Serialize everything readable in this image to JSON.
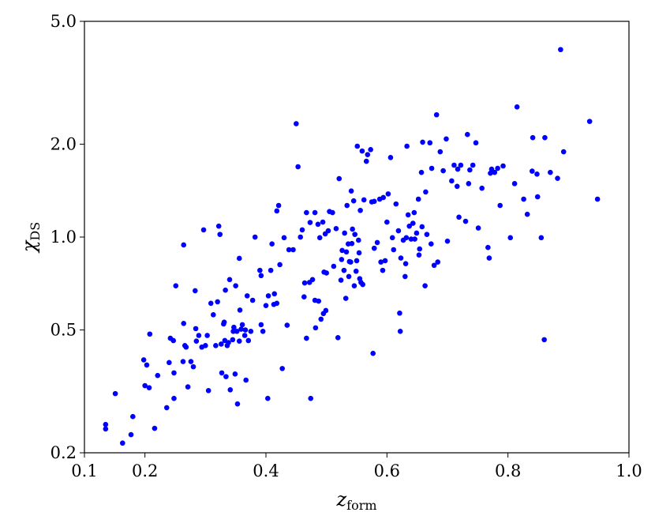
{
  "chart_data": {
    "type": "scatter",
    "xlabel": [
      "z",
      "form"
    ],
    "ylabel": [
      "χ",
      "DS"
    ],
    "color": "#0000ff",
    "log_y": true,
    "xlim": [
      0.1,
      1.0
    ],
    "xticks": [
      0.1,
      0.2,
      0.4,
      0.6,
      0.8,
      {
        "value": 1.0,
        "label": "1.0"
      }
    ],
    "ylim": [
      0.2,
      5.0
    ],
    "yticks": [
      0.2,
      0.5,
      {
        "value": 1.0,
        "label": "1.0"
      },
      {
        "value": 2.0,
        "label": "2.0"
      },
      {
        "value": 5.0,
        "label": "5.0"
      }
    ],
    "x": [
      0.135,
      0.135,
      0.151,
      0.163,
      0.177,
      0.18,
      0.198,
      0.2,
      0.203,
      0.208,
      0.207,
      0.216,
      0.221,
      0.236,
      0.24,
      0.242,
      0.247,
      0.248,
      0.248,
      0.251,
      0.263,
      0.264,
      0.266,
      0.268,
      0.264,
      0.271,
      0.276,
      0.28,
      0.283,
      0.284,
      0.285,
      0.289,
      0.294,
      0.297,
      0.3,
      0.303,
      0.305,
      0.309,
      0.313,
      0.317,
      0.32,
      0.322,
      0.324,
      0.326,
      0.327,
      0.33,
      0.331,
      0.332,
      0.333,
      0.334,
      0.336,
      0.338,
      0.34,
      0.341,
      0.345,
      0.346,
      0.347,
      0.349,
      0.35,
      0.352,
      0.353,
      0.356,
      0.356,
      0.357,
      0.359,
      0.361,
      0.365,
      0.366,
      0.367,
      0.369,
      0.371,
      0.375,
      0.378,
      0.382,
      0.39,
      0.392,
      0.392,
      0.395,
      0.4,
      0.403,
      0.404,
      0.408,
      0.41,
      0.413,
      0.414,
      0.418,
      0.418,
      0.421,
      0.423,
      0.427,
      0.43,
      0.435,
      0.438,
      0.445,
      0.45,
      0.453,
      0.457,
      0.46,
      0.463,
      0.464,
      0.467,
      0.467,
      0.472,
      0.473,
      0.474,
      0.477,
      0.481,
      0.481,
      0.482,
      0.486,
      0.487,
      0.489,
      0.491,
      0.494,
      0.495,
      0.496,
      0.498,
      0.499,
      0.5,
      0.503,
      0.505,
      0.51,
      0.512,
      0.516,
      0.519,
      0.521,
      0.524,
      0.525,
      0.526,
      0.529,
      0.53,
      0.532,
      0.533,
      0.534,
      0.536,
      0.537,
      0.538,
      0.54,
      0.541,
      0.542,
      0.543,
      0.545,
      0.546,
      0.547,
      0.549,
      0.55,
      0.551,
      0.553,
      0.554,
      0.555,
      0.556,
      0.557,
      0.559,
      0.56,
      0.562,
      0.566,
      0.568,
      0.573,
      0.575,
      0.577,
      0.579,
      0.579,
      0.584,
      0.588,
      0.59,
      0.593,
      0.594,
      0.597,
      0.6,
      0.602,
      0.606,
      0.609,
      0.611,
      0.615,
      0.619,
      0.621,
      0.622,
      0.623,
      0.627,
      0.63,
      0.631,
      0.632,
      0.633,
      0.635,
      0.637,
      0.64,
      0.643,
      0.645,
      0.646,
      0.649,
      0.652,
      0.653,
      0.654,
      0.657,
      0.658,
      0.659,
      0.663,
      0.664,
      0.666,
      0.671,
      0.673,
      0.674,
      0.678,
      0.682,
      0.684,
      0.688,
      0.693,
      0.698,
      0.7,
      0.707,
      0.711,
      0.716,
      0.717,
      0.719,
      0.722,
      0.73,
      0.733,
      0.735,
      0.737,
      0.742,
      0.747,
      0.751,
      0.757,
      0.767,
      0.769,
      0.771,
      0.773,
      0.778,
      0.783,
      0.787,
      0.792,
      0.804,
      0.811,
      0.815,
      0.826,
      0.832,
      0.84,
      0.841,
      0.848,
      0.849,
      0.855,
      0.86,
      0.861,
      0.87,
      0.882,
      0.887,
      0.892,
      0.935,
      0.948
    ],
    "y": [
      0.247,
      0.239,
      0.311,
      0.215,
      0.229,
      0.262,
      0.4,
      0.33,
      0.385,
      0.485,
      0.325,
      0.24,
      0.356,
      0.28,
      0.392,
      0.47,
      0.462,
      0.363,
      0.3,
      0.695,
      0.395,
      0.525,
      0.445,
      0.44,
      0.943,
      0.327,
      0.395,
      0.38,
      0.67,
      0.505,
      0.46,
      0.48,
      0.44,
      1.055,
      0.445,
      0.48,
      0.318,
      0.61,
      0.56,
      0.445,
      0.617,
      1.085,
      1.02,
      0.45,
      0.363,
      0.523,
      0.53,
      0.462,
      0.673,
      0.353,
      0.445,
      0.455,
      0.728,
      0.32,
      0.465,
      0.495,
      0.51,
      0.36,
      0.695,
      0.495,
      0.288,
      0.46,
      0.853,
      0.58,
      0.503,
      0.52,
      0.48,
      0.5,
      0.344,
      0.645,
      0.462,
      0.495,
      0.624,
      1.0,
      0.78,
      0.75,
      0.52,
      0.495,
      0.6,
      0.3,
      0.645,
      0.78,
      0.95,
      0.605,
      0.655,
      0.61,
      1.215,
      1.266,
      0.814,
      0.375,
      0.995,
      0.518,
      0.91,
      0.91,
      2.33,
      1.69,
      1.0,
      1.055,
      0.64,
      0.71,
      1.2,
      0.47,
      0.713,
      1.115,
      0.3,
      0.728,
      1.2,
      0.624,
      0.508,
      1.1,
      0.62,
      0.995,
      0.542,
      1.118,
      0.565,
      0.77,
      1.024,
      0.578,
      0.765,
      1.048,
      1.21,
      1.2,
      0.804,
      1.065,
      0.472,
      1.546,
      0.725,
      0.846,
      0.905,
      0.78,
      1.03,
      0.633,
      0.895,
      1.266,
      0.95,
      0.745,
      0.833,
      0.83,
      1.41,
      0.953,
      1.061,
      1.31,
      0.695,
      1.02,
      0.775,
      0.838,
      1.97,
      0.977,
      0.889,
      0.733,
      1.22,
      0.713,
      1.9,
      0.702,
      1.32,
      1.76,
      1.85,
      1.92,
      1.3,
      0.42,
      0.92,
      1.305,
      0.96,
      1.327,
      0.83,
      0.78,
      1.343,
      0.838,
      1.118,
      1.38,
      1.81,
      0.995,
      0.91,
      1.28,
      1.048,
      0.567,
      0.495,
      0.855,
      0.977,
      0.745,
      0.82,
      0.995,
      1.97,
      1.18,
      1.085,
      0.985,
      1.108,
      1.2,
      0.985,
      1.03,
      1.327,
      0.875,
      0.915,
      1.62,
      1.08,
      2.03,
      0.695,
      1.4,
      1.02,
      2.02,
      0.95,
      1.67,
      0.81,
      2.49,
      0.83,
      1.89,
      1.64,
      2.08,
      0.97,
      1.52,
      1.71,
      1.46,
      1.66,
      1.16,
      1.71,
      1.125,
      2.15,
      1.49,
      1.65,
      1.71,
      2.02,
      1.07,
      1.44,
      0.925,
      0.855,
      1.61,
      1.66,
      1.62,
      1.67,
      1.266,
      1.7,
      0.995,
      1.49,
      2.64,
      1.327,
      1.185,
      1.635,
      2.1,
      1.6,
      1.35,
      0.995,
      0.465,
      2.1,
      1.62,
      1.55,
      4.05,
      1.89,
      2.37,
      1.327
    ]
  }
}
